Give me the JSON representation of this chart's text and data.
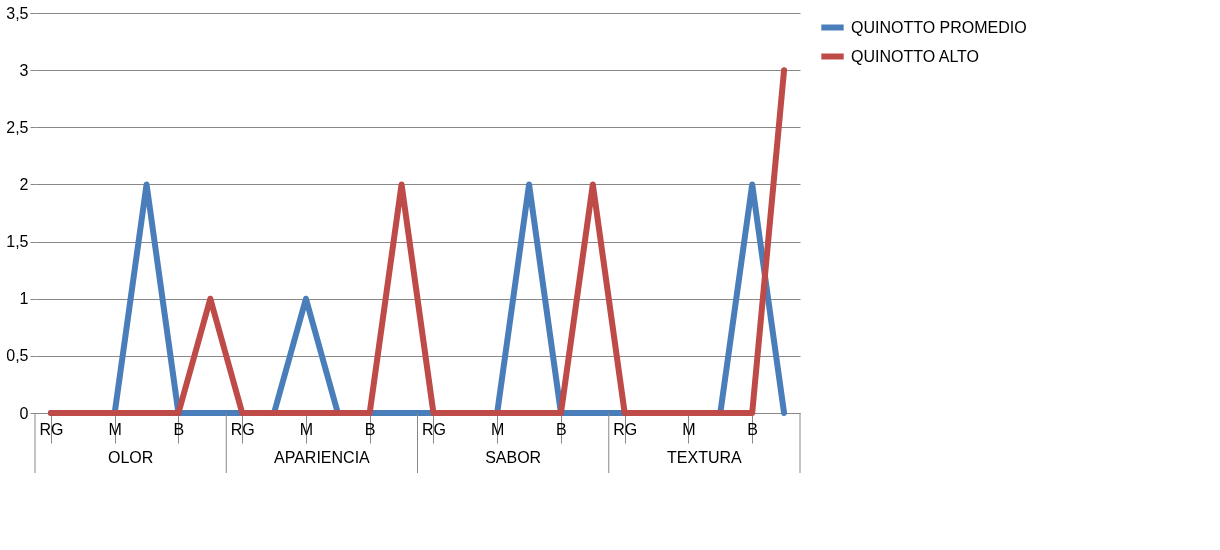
{
  "chart_data": {
    "type": "line",
    "categories": [
      "RG",
      null,
      "M",
      null,
      "B",
      null,
      "RG",
      null,
      "M",
      null,
      "B",
      null,
      "RG",
      null,
      "M",
      null,
      "B",
      null,
      "RG",
      null,
      "M",
      null,
      "B",
      null
    ],
    "series": [
      {
        "name": "QUINOTTO PROMEDIO",
        "color": "#4a7ebb",
        "values": [
          0,
          0,
          0,
          2,
          0,
          0,
          0,
          0,
          1,
          0,
          0,
          0,
          0,
          0,
          0,
          2,
          0,
          0,
          0,
          0,
          0,
          0,
          2,
          0
        ]
      },
      {
        "name": "QUINOTTO ALTO",
        "color": "#be4b48",
        "values": [
          0,
          0,
          0,
          0,
          0,
          1,
          0,
          0,
          0,
          0,
          0,
          2,
          0,
          0,
          0,
          0,
          0,
          2,
          0,
          0,
          0,
          0,
          0,
          3
        ]
      }
    ],
    "annotations": [
      "OLOR",
      "APARIENCIA",
      "SABOR",
      "TEXTURA"
    ],
    "ylim": [
      0,
      3.5
    ],
    "yticks": [
      {
        "value": 0,
        "label": "0"
      },
      {
        "value": 0.5,
        "label": "0,5"
      },
      {
        "value": 1,
        "label": "1"
      },
      {
        "value": 1.5,
        "label": "1,5"
      },
      {
        "value": 2,
        "label": "2"
      },
      {
        "value": 2.5,
        "label": "2,5"
      },
      {
        "value": 3,
        "label": "3"
      },
      {
        "value": 3.5,
        "label": "3,5"
      }
    ],
    "grid": "y",
    "legend": "right",
    "marker": "none",
    "line_style": "solid"
  }
}
